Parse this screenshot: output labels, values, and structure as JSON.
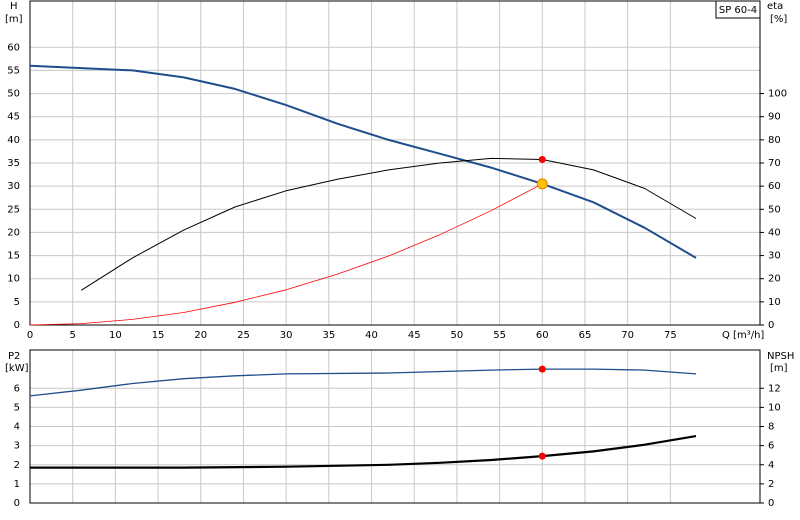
{
  "chart_data": [
    {
      "type": "line",
      "label": "SP 60-4",
      "y_label": "H",
      "y_unit": "[m]",
      "y2_label": "eta",
      "y2_unit": "[%]",
      "x_label": "Q [m³/h]",
      "xlim": [
        0,
        85.5
      ],
      "xticks": [
        0,
        5,
        10,
        15,
        20,
        25,
        30,
        35,
        40,
        45,
        50,
        55,
        60,
        65,
        70,
        75
      ],
      "ylim": [
        0,
        70
      ],
      "yticks": [
        0,
        5,
        10,
        15,
        20,
        25,
        30,
        35,
        40,
        45,
        50,
        55,
        60
      ],
      "y2lim": [
        0,
        140
      ],
      "y2ticks": [
        0,
        10,
        20,
        30,
        40,
        50,
        60,
        70,
        80,
        90,
        100
      ],
      "grid": true,
      "series": [
        {
          "color": "#1f4e8c",
          "width": 2,
          "x": [
            0,
            6,
            12,
            18,
            24,
            30,
            36,
            42,
            48,
            54,
            60,
            66,
            72,
            78
          ],
          "values": [
            56,
            55.5,
            55,
            53.5,
            51,
            47.5,
            43.5,
            40,
            37,
            34,
            30.5,
            26.5,
            21,
            14.5
          ]
        },
        {
          "color": "#000000",
          "width": 1,
          "axis": "y2",
          "x": [
            6,
            12,
            18,
            24,
            30,
            36,
            42,
            48,
            54,
            60,
            66,
            72,
            78
          ],
          "values": [
            15,
            29,
            41,
            51,
            58,
            63,
            67,
            70,
            72,
            71.5,
            67,
            59,
            46
          ]
        },
        {
          "color": "#ff0000",
          "width": 0.8,
          "x": [
            0,
            6,
            12,
            18,
            24,
            30,
            36,
            42,
            48,
            54,
            60
          ],
          "values": [
            0,
            0.3,
            1.2,
            2.7,
            4.9,
            7.6,
            11,
            14.9,
            19.5,
            24.7,
            30.5
          ]
        }
      ],
      "points": [
        {
          "x": 60,
          "y": 71.5,
          "axis": "y2",
          "color": "#ff0000",
          "r": 3.5
        },
        {
          "x": 60,
          "y": 30.5,
          "color": "#ffc000",
          "r": 5
        }
      ]
    },
    {
      "type": "line",
      "y_label": "P2",
      "y_unit": "[kW]",
      "y2_label": "NPSH",
      "y2_unit": "[m]",
      "xlim": [
        0,
        85.5
      ],
      "xticks": [
        0,
        5,
        10,
        15,
        20,
        25,
        30,
        35,
        40,
        45,
        50,
        55,
        60,
        65,
        70,
        75
      ],
      "ylim": [
        0,
        8
      ],
      "yticks": [
        0,
        1,
        2,
        3,
        4,
        5,
        6
      ],
      "y2lim": [
        0,
        16
      ],
      "y2ticks": [
        0,
        2,
        4,
        6,
        8,
        10,
        12
      ],
      "grid": true,
      "series": [
        {
          "color": "#000000",
          "width": 2.2,
          "x": [
            0,
            6,
            18,
            30,
            42,
            48,
            54,
            60,
            66,
            72,
            78
          ],
          "values": [
            1.85,
            1.85,
            1.85,
            1.9,
            2.0,
            2.1,
            2.25,
            2.45,
            2.7,
            3.05,
            3.5
          ]
        },
        {
          "color": "#1f4e8c",
          "width": 1.3,
          "axis": "y2",
          "x": [
            0,
            6,
            12,
            18,
            24,
            30,
            42,
            54,
            60,
            66,
            72,
            78
          ],
          "values": [
            11.2,
            11.8,
            12.5,
            13,
            13.3,
            13.5,
            13.6,
            13.9,
            14,
            14,
            13.9,
            13.5
          ]
        }
      ],
      "points": [
        {
          "x": 60,
          "y": 2.45,
          "color": "#ff0000",
          "r": 3.5
        },
        {
          "x": 60,
          "y": 14,
          "axis": "y2",
          "color": "#ff0000",
          "r": 3.5
        }
      ]
    }
  ]
}
